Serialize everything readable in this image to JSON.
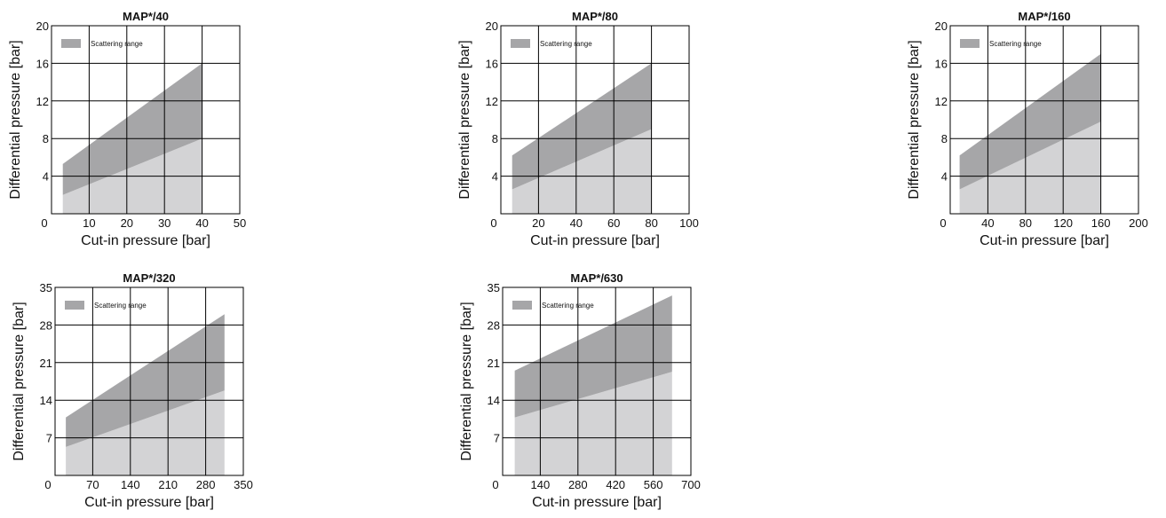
{
  "colors": {
    "band": "#a6a6a8",
    "lower_fill": "#d3d3d5",
    "grid": "#000000",
    "frame": "#000000"
  },
  "chart_data": [
    {
      "type": "area",
      "title": "MAP*/40",
      "xlabel": "Cut-in pressure [bar]",
      "ylabel": "Differential pressure [bar]",
      "xlim": [
        0,
        50
      ],
      "ylim": [
        0,
        20
      ],
      "xticks": [
        10,
        20,
        30,
        40,
        50
      ],
      "yticks": [
        4,
        8,
        12,
        16,
        20
      ],
      "origin_label": "0",
      "grid": true,
      "legend": {
        "label": "Scattering range",
        "position": "top-left"
      },
      "series": [
        {
          "name": "Scattering range",
          "x": [
            3,
            40
          ],
          "upper": [
            5.3,
            16
          ],
          "lower": [
            2,
            8
          ]
        }
      ]
    },
    {
      "type": "area",
      "title": "MAP*/80",
      "xlabel": "Cut-in pressure [bar]",
      "ylabel": "Differential pressure [bar]",
      "xlim": [
        0,
        100
      ],
      "ylim": [
        0,
        20
      ],
      "xticks": [
        20,
        40,
        60,
        80,
        100
      ],
      "yticks": [
        4,
        8,
        12,
        16,
        20
      ],
      "origin_label": "0",
      "grid": true,
      "legend": {
        "label": "Scattering range",
        "position": "top-left"
      },
      "series": [
        {
          "name": "Scattering range",
          "x": [
            6,
            80
          ],
          "upper": [
            6.2,
            16
          ],
          "lower": [
            2.6,
            9
          ]
        }
      ]
    },
    {
      "type": "area",
      "title": "MAP*/160",
      "xlabel": "Cut-in pressure [bar]",
      "ylabel": "Differential pressure [bar]",
      "xlim": [
        0,
        200
      ],
      "ylim": [
        0,
        20
      ],
      "xticks": [
        40,
        80,
        120,
        160,
        200
      ],
      "yticks": [
        4,
        8,
        12,
        16,
        20
      ],
      "origin_label": "0",
      "grid": true,
      "legend": {
        "label": "Scattering range",
        "position": "top-left"
      },
      "series": [
        {
          "name": "Scattering range",
          "x": [
            10,
            160
          ],
          "upper": [
            6.2,
            17
          ],
          "lower": [
            2.6,
            9.8
          ]
        }
      ]
    },
    {
      "type": "area",
      "title": "MAP*/320",
      "xlabel": "Cut-in pressure [bar]",
      "ylabel": "Differential pressure [bar]",
      "xlim": [
        0,
        350
      ],
      "ylim": [
        0,
        35
      ],
      "xticks": [
        70,
        140,
        210,
        280,
        350
      ],
      "yticks": [
        7,
        14,
        21,
        28,
        35
      ],
      "origin_label": "0",
      "grid": true,
      "legend": {
        "label": "Scattering range",
        "position": "top-left"
      },
      "series": [
        {
          "name": "Scattering range",
          "x": [
            20,
            315
          ],
          "upper": [
            10.8,
            30
          ],
          "lower": [
            5.3,
            15.8
          ]
        }
      ]
    },
    {
      "type": "area",
      "title": "MAP*/630",
      "xlabel": "Cut-in pressure [bar]",
      "ylabel": "Differential pressure [bar]",
      "xlim": [
        0,
        700
      ],
      "ylim": [
        0,
        35
      ],
      "xticks": [
        140,
        280,
        420,
        560,
        700
      ],
      "yticks": [
        7,
        14,
        21,
        28,
        35
      ],
      "origin_label": "0",
      "grid": true,
      "legend": {
        "label": "Scattering range",
        "position": "top-left"
      },
      "series": [
        {
          "name": "Scattering range",
          "x": [
            45,
            630
          ],
          "upper": [
            19.5,
            33.5
          ],
          "lower": [
            10.8,
            19.3
          ]
        }
      ]
    }
  ]
}
